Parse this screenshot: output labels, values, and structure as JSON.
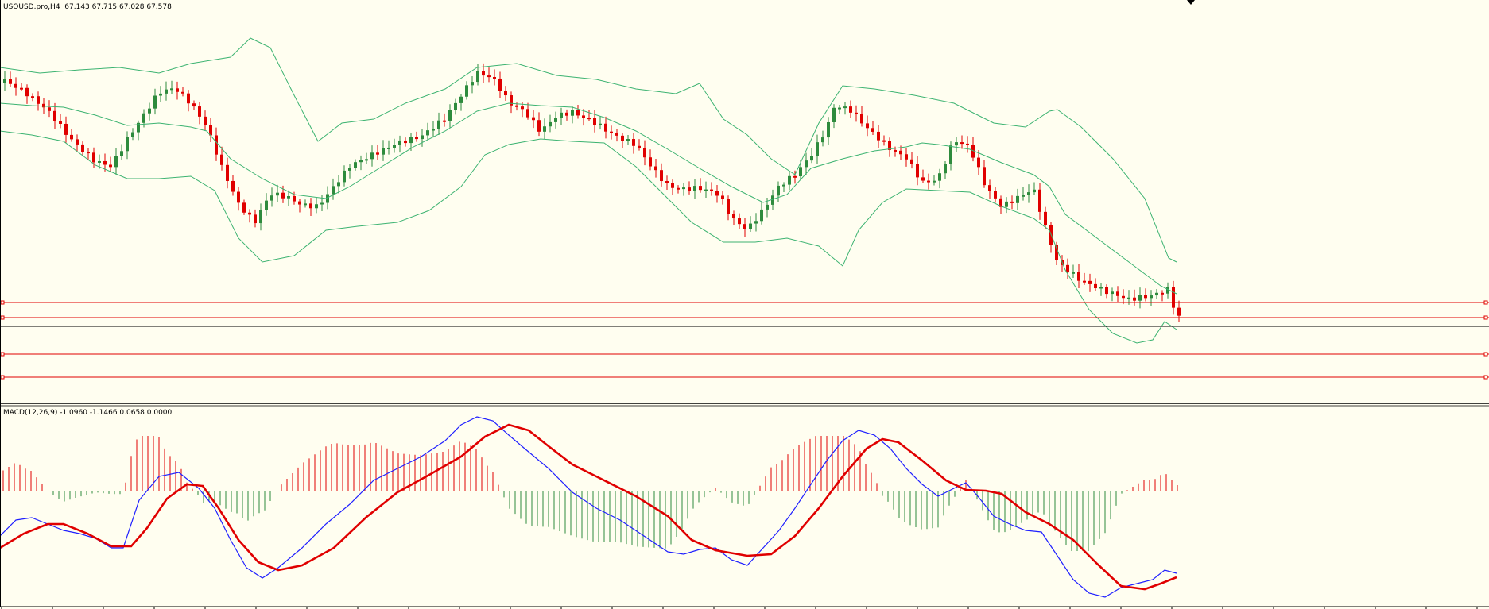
{
  "header": {
    "symbol_label": "USOUSD.pro,H4",
    "ohlc_label": "67.143 67.715 67.028 67.578"
  },
  "macd_panel": {
    "label": "MACD(12,26,9) -1.0960 -1.1466 0.0658 0.0000"
  },
  "colors": {
    "background": "#fffef0",
    "bull_candle": "#2e8b3d",
    "bear_candle": "#e00000",
    "bollinger": "#3cb371",
    "horizontal_levels": "#e00000",
    "bid_line": "#000000",
    "macd_main": "#2020ff",
    "macd_signal": "#e00000",
    "hist_positive": "#e00000",
    "hist_negative": "#2e8b3d"
  },
  "chart_data": {
    "type": "candlestick",
    "symbol": "USOUSD.pro",
    "timeframe": "H4",
    "last_bar": {
      "open": 67.143,
      "high": 67.715,
      "low": 67.028,
      "close": 67.578
    },
    "indicators": [
      "Bollinger Bands",
      "MACD(12,26,9)"
    ],
    "macd": {
      "fast": 12,
      "slow": 26,
      "signal": 9,
      "main": -1.096,
      "signal_value": -1.1466,
      "histogram": 0.0658,
      "zero": 0.0
    },
    "horizontal_levels_count": 4,
    "grid": false
  }
}
